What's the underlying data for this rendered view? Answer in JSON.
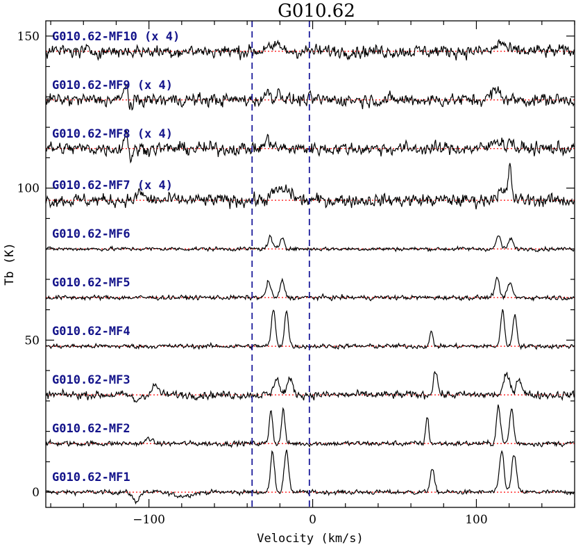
{
  "chart_data": {
    "type": "line",
    "title": "G010.62",
    "xlabel": "Velocity (km/s)",
    "ylabel": "Tb (K)",
    "xlim": [
      -163,
      160
    ],
    "ylim": [
      -5,
      155
    ],
    "x_ticks": [
      -100,
      0,
      100
    ],
    "x_tick_labels": [
      "−100",
      "0",
      "100"
    ],
    "y_ticks": [
      0,
      50,
      100,
      150
    ],
    "y_tick_labels": [
      "0",
      "50",
      "100",
      "150"
    ],
    "vertical_lines": [
      -37,
      -2
    ],
    "vertical_line_color": "#1a1a9a",
    "baseline_color": "#ff0000",
    "trace_color": "#000000",
    "label_color": "#13138a",
    "series": [
      {
        "name": "G010.62-MF1",
        "baseline": 0,
        "noise": 0.35,
        "features": [
          [
            -24.5,
            1.2,
            13.5
          ],
          [
            -16,
            1.4,
            13
          ],
          [
            73,
            1.3,
            7.5
          ],
          [
            115.5,
            1.4,
            13.5
          ],
          [
            123,
            1.4,
            12.5
          ],
          [
            -108,
            2,
            -3
          ],
          [
            -80,
            6,
            -1.2
          ]
        ]
      },
      {
        "name": "G010.62-MF2",
        "baseline": 16,
        "noise": 0.4,
        "features": [
          [
            -25.5,
            1.0,
            11.5
          ],
          [
            -18,
            1.0,
            11.5
          ],
          [
            70,
            0.9,
            9
          ],
          [
            113.5,
            1.2,
            12.5
          ],
          [
            121.5,
            1.2,
            11.5
          ],
          [
            -100,
            1.5,
            2
          ]
        ]
      },
      {
        "name": "G010.62-MF3",
        "baseline": 32,
        "noise": 0.6,
        "features": [
          [
            -22,
            1.5,
            6
          ],
          [
            -14,
            1.8,
            5
          ],
          [
            75,
            1.3,
            8
          ],
          [
            118.5,
            1.8,
            6.5
          ],
          [
            126,
            1.8,
            5.5
          ],
          [
            -96,
            2,
            3
          ],
          [
            -108,
            2,
            -2
          ]
        ]
      },
      {
        "name": "G010.62-MF4",
        "baseline": 48,
        "noise": 0.35,
        "features": [
          [
            -24,
            1.2,
            12
          ],
          [
            -16,
            1.2,
            11.5
          ],
          [
            72.5,
            1.0,
            4.5
          ],
          [
            116,
            1.2,
            11.5
          ],
          [
            123.5,
            1.2,
            10.5
          ]
        ]
      },
      {
        "name": "G010.62-MF5",
        "baseline": 64,
        "noise": 0.35,
        "features": [
          [
            -27,
            1.3,
            5.5
          ],
          [
            -18.5,
            1.3,
            5.5
          ],
          [
            112.5,
            1.4,
            6
          ],
          [
            120.5,
            1.4,
            5
          ]
        ]
      },
      {
        "name": "G010.62-MF6",
        "baseline": 80,
        "noise": 0.3,
        "features": [
          [
            -26,
            1.3,
            4
          ],
          [
            -18.5,
            1.3,
            4
          ],
          [
            113.5,
            1.3,
            4.5
          ],
          [
            121,
            1.3,
            3.5
          ]
        ]
      },
      {
        "name": "G010.62-MF7 (x 4)",
        "baseline": 96,
        "noise": 1.0,
        "features": [
          [
            -22,
            3,
            3
          ],
          [
            -15,
            3,
            3
          ],
          [
            120.5,
            1.0,
            10
          ],
          [
            115,
            4,
            2.5
          ],
          [
            -105,
            2,
            2.5
          ]
        ]
      },
      {
        "name": "G010.62-MF8 (x 4)",
        "baseline": 113,
        "noise": 1.0,
        "features": [
          [
            -114,
            1.2,
            6
          ],
          [
            -111,
            1.5,
            -3
          ],
          [
            -27,
            2,
            3
          ],
          [
            113,
            3,
            3
          ],
          [
            121,
            1.2,
            3
          ]
        ]
      },
      {
        "name": "G010.62-MF9 (x 4)",
        "baseline": 129,
        "noise": 1.0,
        "features": [
          [
            -114,
            1.2,
            6
          ],
          [
            -111,
            1.5,
            -3
          ],
          [
            -27,
            1.5,
            3
          ],
          [
            -20,
            1.5,
            3
          ],
          [
            112,
            3,
            3
          ]
        ]
      },
      {
        "name": "G010.62-MF10 (x 4)",
        "baseline": 145,
        "noise": 1.0,
        "features": [
          [
            -28,
            1.5,
            2
          ],
          [
            -21,
            1.5,
            2.5
          ],
          [
            115,
            2.5,
            3
          ]
        ]
      }
    ]
  }
}
